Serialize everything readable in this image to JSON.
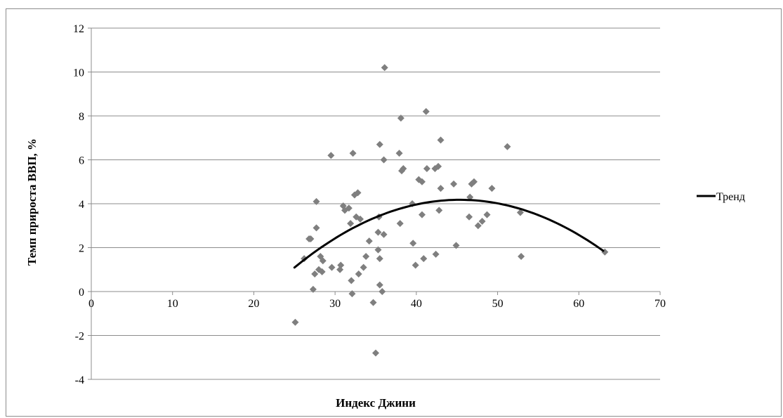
{
  "chart_data": {
    "type": "scatter",
    "xlabel": "Индекс Джини",
    "ylabel": "Темп прироста ВВП, %",
    "xlim": [
      0,
      70
    ],
    "ylim": [
      -4,
      12
    ],
    "x_ticks": [
      0,
      10,
      20,
      30,
      40,
      50,
      60,
      70
    ],
    "y_ticks": [
      -4,
      -2,
      0,
      2,
      4,
      6,
      8,
      10,
      12
    ],
    "x_tick_labels": [
      "0",
      "10",
      "20",
      "30",
      "40",
      "50",
      "60",
      "70"
    ],
    "y_tick_labels": [
      "-4",
      "-2",
      "0",
      "2",
      "4",
      "6",
      "8",
      "10",
      "12"
    ],
    "grid": "horizontal",
    "legend_position": "right",
    "marker_color": "#7f7f7f",
    "trend_color": "#000000",
    "points": [
      [
        25.1,
        -1.4
      ],
      [
        26.2,
        1.5
      ],
      [
        26.8,
        2.4
      ],
      [
        27.0,
        2.4
      ],
      [
        27.3,
        0.1
      ],
      [
        27.5,
        0.8
      ],
      [
        27.7,
        2.9
      ],
      [
        27.7,
        4.1
      ],
      [
        28.0,
        1.0
      ],
      [
        28.2,
        1.6
      ],
      [
        28.4,
        0.9
      ],
      [
        28.5,
        1.4
      ],
      [
        29.5,
        6.2
      ],
      [
        29.6,
        1.1
      ],
      [
        30.6,
        1.0
      ],
      [
        30.7,
        1.2
      ],
      [
        31.0,
        3.9
      ],
      [
        31.2,
        3.7
      ],
      [
        31.7,
        3.8
      ],
      [
        31.9,
        3.1
      ],
      [
        32.0,
        0.5
      ],
      [
        32.1,
        -0.1
      ],
      [
        32.2,
        6.3
      ],
      [
        32.4,
        4.4
      ],
      [
        32.6,
        3.4
      ],
      [
        32.8,
        4.5
      ],
      [
        32.9,
        0.8
      ],
      [
        33.1,
        3.3
      ],
      [
        33.5,
        1.1
      ],
      [
        33.8,
        1.6
      ],
      [
        34.2,
        2.3
      ],
      [
        34.7,
        -0.5
      ],
      [
        35.0,
        -2.8
      ],
      [
        35.3,
        2.7
      ],
      [
        35.3,
        1.9
      ],
      [
        35.4,
        3.4
      ],
      [
        35.5,
        0.3
      ],
      [
        35.5,
        1.5
      ],
      [
        35.5,
        6.7
      ],
      [
        35.8,
        0.0
      ],
      [
        36.0,
        2.6
      ],
      [
        36.0,
        6.0
      ],
      [
        36.1,
        10.2
      ],
      [
        37.9,
        6.3
      ],
      [
        38.0,
        3.1
      ],
      [
        38.1,
        7.9
      ],
      [
        38.2,
        5.5
      ],
      [
        38.4,
        5.6
      ],
      [
        39.5,
        4.0
      ],
      [
        39.6,
        2.2
      ],
      [
        39.9,
        1.2
      ],
      [
        40.3,
        5.1
      ],
      [
        40.7,
        5.0
      ],
      [
        40.7,
        3.5
      ],
      [
        40.9,
        1.5
      ],
      [
        41.2,
        8.2
      ],
      [
        41.3,
        5.6
      ],
      [
        42.3,
        5.6
      ],
      [
        42.4,
        1.7
      ],
      [
        42.7,
        5.7
      ],
      [
        42.8,
        3.7
      ],
      [
        43.0,
        6.9
      ],
      [
        43.0,
        4.7
      ],
      [
        44.6,
        4.9
      ],
      [
        44.9,
        2.1
      ],
      [
        46.5,
        3.4
      ],
      [
        46.6,
        4.3
      ],
      [
        46.8,
        4.9
      ],
      [
        47.1,
        5.0
      ],
      [
        47.6,
        3.0
      ],
      [
        48.1,
        3.2
      ],
      [
        48.7,
        3.5
      ],
      [
        49.3,
        4.7
      ],
      [
        51.2,
        6.6
      ],
      [
        52.8,
        3.6
      ],
      [
        52.9,
        1.6
      ],
      [
        63.2,
        1.8
      ]
    ],
    "series": [
      {
        "name": "Тренд",
        "type": "line",
        "x_range": [
          25,
          63
        ],
        "coefficients": [
          -11.15,
          0.6761,
          -0.007455
        ]
      }
    ]
  }
}
